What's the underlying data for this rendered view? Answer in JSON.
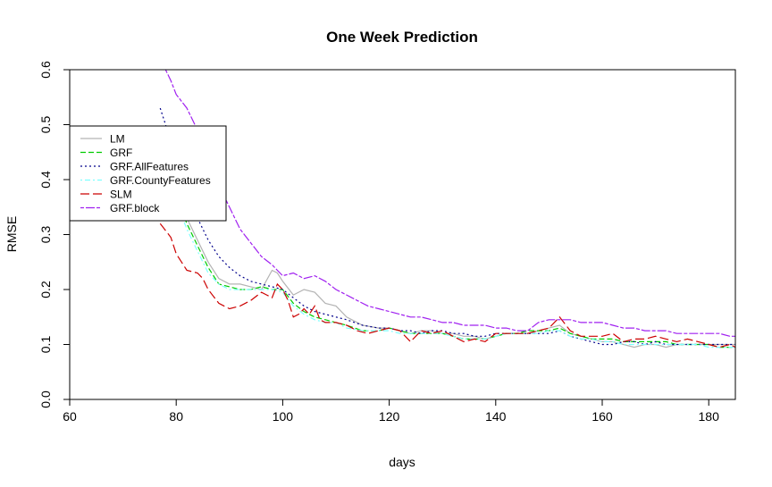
{
  "chart_data": {
    "type": "line",
    "title": "One Week Prediction",
    "xlabel": "days",
    "ylabel": "RMSE",
    "xlim": [
      60,
      185
    ],
    "ylim": [
      0,
      0.6
    ],
    "x_ticks": [
      60,
      80,
      100,
      120,
      140,
      160,
      180
    ],
    "y_ticks": [
      0.0,
      0.1,
      0.2,
      0.3,
      0.4,
      0.5,
      0.6
    ],
    "x_tick_labels": [
      "60",
      "80",
      "100",
      "120",
      "140",
      "160",
      "180"
    ],
    "y_tick_labels": [
      "0.0",
      "0.1",
      "0.2",
      "0.3",
      "0.4",
      "0.5",
      "0.6"
    ],
    "grid": false,
    "legend_position": "top-left",
    "series": [
      {
        "name": "LM",
        "color": "#b3b3b3",
        "dash": "solid",
        "x": [
          77,
          80,
          82,
          84,
          86,
          88,
          90,
          92,
          94,
          96,
          98,
          99,
          100,
          102,
          104,
          106,
          108,
          110,
          112,
          115,
          118,
          120,
          122,
          124,
          126,
          128,
          130,
          132,
          134,
          136,
          138,
          140,
          142,
          144,
          146,
          148,
          150,
          152,
          154,
          156,
          158,
          160,
          162,
          164,
          166,
          168,
          170,
          172,
          174,
          176,
          178,
          180,
          182,
          184,
          185
        ],
        "y": [
          0.48,
          0.38,
          0.33,
          0.29,
          0.25,
          0.22,
          0.21,
          0.21,
          0.205,
          0.2,
          0.235,
          0.23,
          0.215,
          0.19,
          0.2,
          0.195,
          0.175,
          0.17,
          0.15,
          0.135,
          0.13,
          0.13,
          0.125,
          0.12,
          0.125,
          0.125,
          0.12,
          0.12,
          0.115,
          0.115,
          0.11,
          0.115,
          0.12,
          0.12,
          0.12,
          0.125,
          0.13,
          0.135,
          0.12,
          0.115,
          0.11,
          0.105,
          0.105,
          0.1,
          0.095,
          0.1,
          0.1,
          0.095,
          0.1,
          0.1,
          0.1,
          0.1,
          0.1,
          0.1,
          0.1
        ]
      },
      {
        "name": "GRF",
        "color": "#00cc00",
        "dash": "dashed",
        "x": [
          77,
          80,
          82,
          84,
          86,
          88,
          90,
          92,
          94,
          96,
          98,
          100,
          102,
          104,
          106,
          108,
          110,
          112,
          115,
          118,
          120,
          122,
          124,
          126,
          128,
          130,
          132,
          134,
          136,
          138,
          140,
          142,
          144,
          146,
          148,
          150,
          152,
          154,
          156,
          158,
          160,
          162,
          164,
          166,
          168,
          170,
          172,
          174,
          176,
          178,
          180,
          182,
          184,
          185
        ],
        "y": [
          0.47,
          0.37,
          0.32,
          0.28,
          0.24,
          0.21,
          0.205,
          0.2,
          0.2,
          0.205,
          0.2,
          0.2,
          0.175,
          0.16,
          0.15,
          0.145,
          0.14,
          0.135,
          0.125,
          0.125,
          0.13,
          0.125,
          0.12,
          0.12,
          0.12,
          0.12,
          0.115,
          0.11,
          0.11,
          0.11,
          0.115,
          0.12,
          0.12,
          0.125,
          0.125,
          0.125,
          0.13,
          0.12,
          0.115,
          0.11,
          0.11,
          0.11,
          0.105,
          0.105,
          0.105,
          0.105,
          0.105,
          0.1,
          0.1,
          0.1,
          0.1,
          0.095,
          0.095,
          0.095
        ]
      },
      {
        "name": "GRF.AllFeatures",
        "color": "#00008b",
        "dash": "dotted",
        "x": [
          77,
          78,
          80,
          82,
          84,
          86,
          88,
          90,
          92,
          94,
          96,
          98,
          100,
          102,
          104,
          106,
          108,
          110,
          112,
          115,
          118,
          120,
          122,
          124,
          126,
          128,
          130,
          132,
          134,
          136,
          138,
          140,
          142,
          144,
          146,
          148,
          150,
          152,
          154,
          156,
          158,
          160,
          162,
          164,
          166,
          168,
          170,
          172,
          174,
          176,
          178,
          180,
          182,
          184,
          185
        ],
        "y": [
          0.53,
          0.5,
          0.43,
          0.38,
          0.33,
          0.29,
          0.26,
          0.24,
          0.225,
          0.215,
          0.21,
          0.205,
          0.2,
          0.185,
          0.17,
          0.16,
          0.155,
          0.15,
          0.145,
          0.135,
          0.13,
          0.13,
          0.125,
          0.125,
          0.12,
          0.125,
          0.125,
          0.12,
          0.12,
          0.115,
          0.115,
          0.12,
          0.12,
          0.12,
          0.12,
          0.12,
          0.12,
          0.125,
          0.115,
          0.11,
          0.105,
          0.1,
          0.1,
          0.105,
          0.105,
          0.1,
          0.105,
          0.1,
          0.1,
          0.1,
          0.1,
          0.1,
          0.1,
          0.1,
          0.1
        ]
      },
      {
        "name": "GRF.CountyFeatures",
        "color": "#7fffff",
        "dash": "dotdash",
        "x": [
          77,
          80,
          82,
          84,
          86,
          88,
          90,
          92,
          94,
          96,
          98,
          100,
          102,
          104,
          106,
          108,
          110,
          112,
          115,
          118,
          120,
          122,
          124,
          126,
          128,
          130,
          132,
          134,
          136,
          138,
          140,
          142,
          144,
          146,
          148,
          150,
          152,
          154,
          156,
          158,
          160,
          162,
          164,
          166,
          168,
          170,
          172,
          174,
          176,
          178,
          180,
          182,
          184,
          185
        ],
        "y": [
          0.46,
          0.36,
          0.31,
          0.27,
          0.23,
          0.21,
          0.2,
          0.2,
          0.2,
          0.2,
          0.2,
          0.195,
          0.17,
          0.155,
          0.145,
          0.14,
          0.14,
          0.13,
          0.125,
          0.125,
          0.125,
          0.12,
          0.12,
          0.12,
          0.12,
          0.12,
          0.115,
          0.11,
          0.11,
          0.11,
          0.115,
          0.12,
          0.12,
          0.12,
          0.12,
          0.125,
          0.125,
          0.115,
          0.11,
          0.11,
          0.105,
          0.105,
          0.1,
          0.1,
          0.1,
          0.1,
          0.1,
          0.1,
          0.1,
          0.1,
          0.095,
          0.095,
          0.095,
          0.095
        ]
      },
      {
        "name": "SLM",
        "color": "#cc0000",
        "dash": "longdash",
        "x": [
          77,
          79,
          80,
          82,
          84,
          85,
          86,
          88,
          90,
          92,
          94,
          96,
          97,
          98,
          99,
          100,
          101,
          102,
          103,
          104,
          105,
          106,
          107,
          108,
          110,
          112,
          114,
          116,
          118,
          120,
          122,
          124,
          126,
          128,
          130,
          132,
          134,
          136,
          138,
          140,
          142,
          144,
          146,
          148,
          150,
          152,
          154,
          156,
          158,
          160,
          162,
          164,
          166,
          168,
          170,
          172,
          174,
          176,
          178,
          180,
          182,
          184,
          185
        ],
        "y": [
          0.32,
          0.295,
          0.265,
          0.235,
          0.23,
          0.22,
          0.2,
          0.175,
          0.165,
          0.17,
          0.18,
          0.195,
          0.19,
          0.185,
          0.21,
          0.2,
          0.18,
          0.15,
          0.155,
          0.165,
          0.155,
          0.17,
          0.145,
          0.14,
          0.14,
          0.135,
          0.125,
          0.12,
          0.125,
          0.13,
          0.125,
          0.105,
          0.125,
          0.12,
          0.125,
          0.115,
          0.105,
          0.11,
          0.105,
          0.12,
          0.12,
          0.12,
          0.12,
          0.125,
          0.13,
          0.15,
          0.125,
          0.115,
          0.115,
          0.115,
          0.12,
          0.105,
          0.11,
          0.11,
          0.115,
          0.11,
          0.105,
          0.11,
          0.105,
          0.1,
          0.095,
          0.1,
          0.095
        ]
      },
      {
        "name": "GRF.block",
        "color": "#a020f0",
        "dash": "twodash",
        "x": [
          78,
          79,
          80,
          82,
          84,
          86,
          88,
          90,
          92,
          94,
          96,
          98,
          99,
          100,
          102,
          104,
          106,
          108,
          110,
          112,
          114,
          116,
          118,
          120,
          122,
          124,
          126,
          128,
          130,
          132,
          134,
          136,
          138,
          140,
          142,
          144,
          146,
          148,
          150,
          152,
          154,
          156,
          158,
          160,
          162,
          164,
          166,
          168,
          170,
          172,
          174,
          176,
          178,
          180,
          182,
          184,
          185
        ],
        "y": [
          0.6,
          0.58,
          0.555,
          0.53,
          0.49,
          0.44,
          0.39,
          0.35,
          0.31,
          0.285,
          0.26,
          0.245,
          0.235,
          0.225,
          0.23,
          0.22,
          0.225,
          0.215,
          0.2,
          0.19,
          0.18,
          0.17,
          0.165,
          0.16,
          0.155,
          0.15,
          0.15,
          0.145,
          0.14,
          0.14,
          0.135,
          0.135,
          0.135,
          0.13,
          0.13,
          0.125,
          0.125,
          0.14,
          0.145,
          0.145,
          0.145,
          0.14,
          0.14,
          0.14,
          0.135,
          0.13,
          0.13,
          0.125,
          0.125,
          0.125,
          0.12,
          0.12,
          0.12,
          0.12,
          0.12,
          0.115,
          0.115
        ]
      }
    ]
  }
}
